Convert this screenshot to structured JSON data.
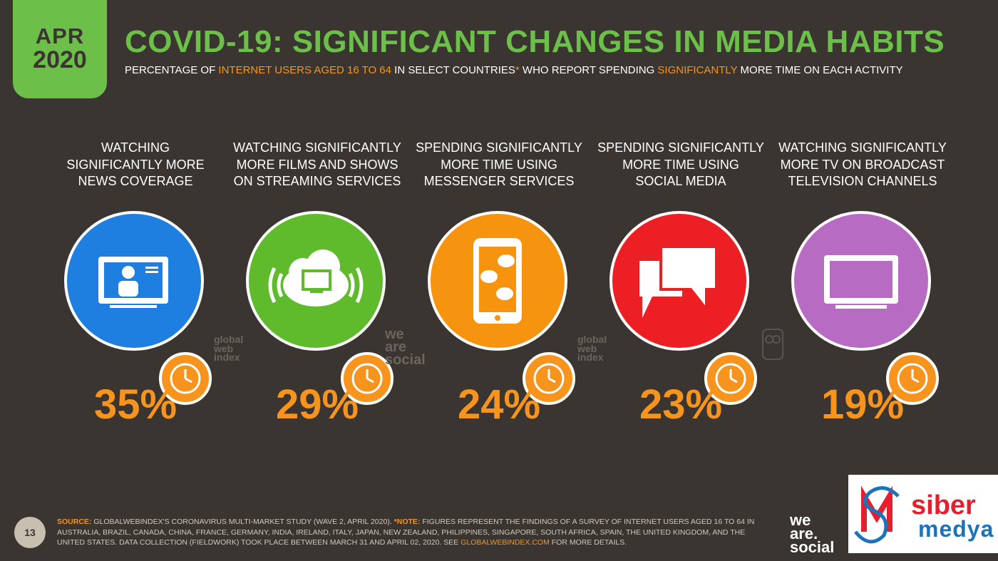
{
  "header": {
    "date_month": "APR",
    "date_year": "2020",
    "title": "COVID-19: SIGNIFICANT CHANGES IN MEDIA HABITS",
    "subtitle_parts": {
      "p1": "PERCENTAGE OF ",
      "h1": "INTERNET USERS AGED 16 TO 64",
      "p2": " IN SELECT COUNTRIES",
      "h2": "*",
      "p3": " WHO REPORT SPENDING ",
      "h3": "SIGNIFICANTLY",
      "p4": " MORE TIME ON EACH ACTIVITY"
    }
  },
  "stats": [
    {
      "label_lines": [
        "WATCHING",
        "SIGNIFICANTLY MORE",
        "NEWS COVERAGE"
      ],
      "value": "35%",
      "color": "#1e7fe0",
      "icon": "tv-news-icon"
    },
    {
      "label_lines": [
        "WATCHING SIGNIFICANTLY",
        "MORE FILMS AND SHOWS",
        "ON STREAMING SERVICES"
      ],
      "value": "29%",
      "color": "#5fbb2c",
      "icon": "cloud-streaming-icon"
    },
    {
      "label_lines": [
        "SPENDING SIGNIFICANTLY",
        "MORE TIME USING",
        "MESSENGER SERVICES"
      ],
      "value": "24%",
      "color": "#f7940f",
      "icon": "phone-messenger-icon"
    },
    {
      "label_lines": [
        "SPENDING SIGNIFICANTLY",
        "MORE TIME USING",
        "SOCIAL MEDIA"
      ],
      "value": "23%",
      "color": "#ec1f25",
      "icon": "speech-bubbles-icon"
    },
    {
      "label_lines": [
        "WATCHING SIGNIFICANTLY",
        "MORE TV ON BROADCAST",
        "TELEVISION CHANNELS"
      ],
      "value": "19%",
      "color": "#b86bc2",
      "icon": "tv-broadcast-icon"
    }
  ],
  "watermarks": {
    "gwi": [
      "global",
      "web",
      "index"
    ],
    "was": [
      "we",
      "are",
      "social"
    ]
  },
  "footer": {
    "page_number": "13",
    "source_label": "SOURCE:",
    "source_text": " GLOBALWEBINDEX'S CORONAVIRUS MULTI-MARKET STUDY (WAVE 2, APRIL 2020). ",
    "note_label": "*NOTE:",
    "note_text": " FIGURES REPRESENT THE FINDINGS OF A SURVEY OF INTERNET USERS AGED 16 TO 64 IN AUSTRALIA, BRAZIL, CANADA, CHINA, FRANCE, GERMANY, INDIA, IRELAND, ITALY, JAPAN, NEW ZEALAND, PHILIPPINES, SINGAPORE, SOUTH AFRICA, SPAIN, THE UNITED KINGDOM, AND THE UNITED STATES. DATA COLLECTION (FIELDWORK) TOOK PLACE BETWEEN MARCH 31 AND APRIL 02, 2020. SEE ",
    "link_text": "GLOBALWEBINDEX.COM",
    "after_link": " FOR MORE DETAILS.",
    "logo_lines": [
      "we",
      "are.",
      "social"
    ]
  },
  "siber_logo": {
    "line1": "siber",
    "line2": "medya"
  },
  "colors": {
    "brand_green": "#6cc04a",
    "accent_orange": "#f7941d",
    "background": "#3a3530"
  }
}
